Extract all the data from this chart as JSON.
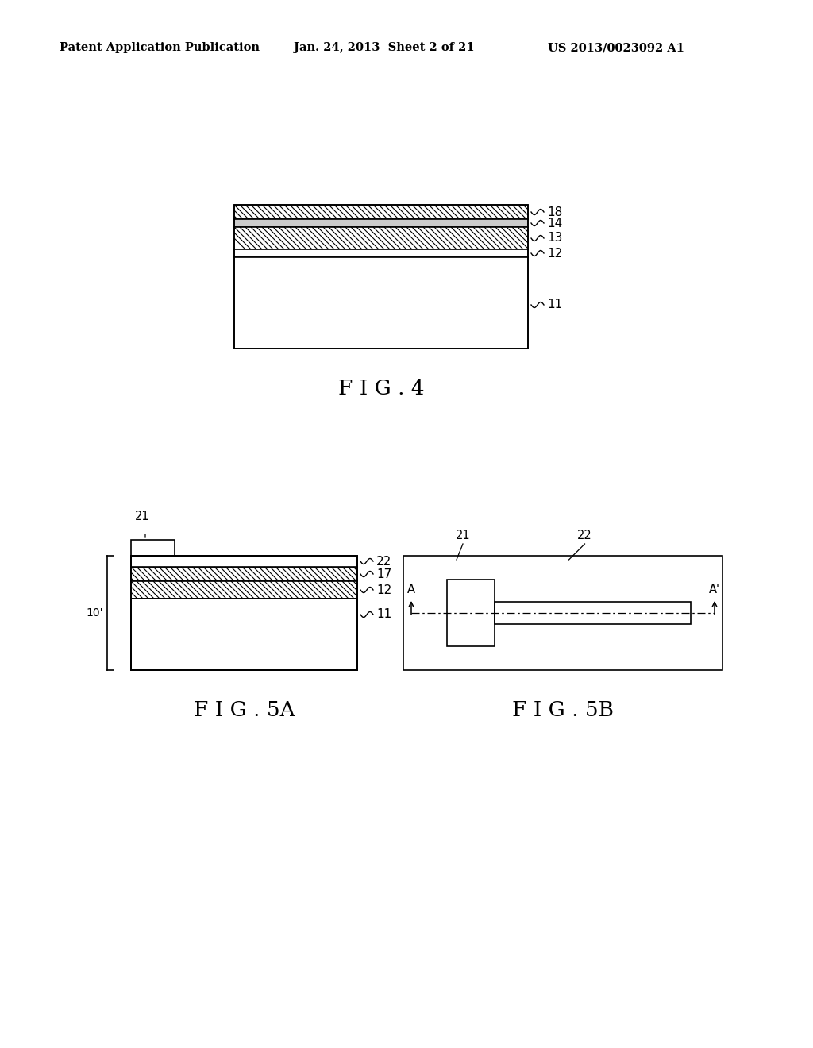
{
  "header_left": "Patent Application Publication",
  "header_mid": "Jan. 24, 2013  Sheet 2 of 21",
  "header_right": "US 2013/0023092 A1",
  "fig4_title": "F I G . 4",
  "fig5a_title": "F I G . 5A",
  "fig5b_title": "F I G . 5B",
  "bg_color": "#ffffff",
  "line_color": "#000000"
}
